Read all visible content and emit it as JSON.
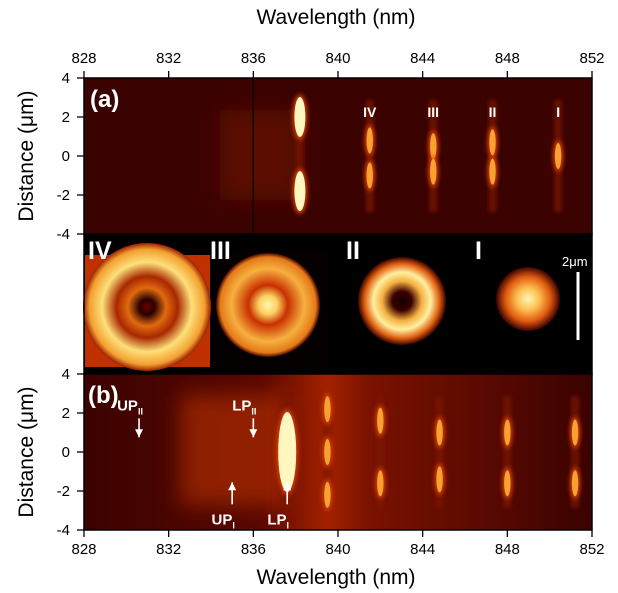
{
  "chart_data": {
    "type": "heatmap",
    "colors": {
      "background": "#350100",
      "cmap_low": "#2a0000",
      "cmap_mid": "#c43000",
      "cmap_high": "#fff6a0",
      "annotation": "#ffffff"
    },
    "x_axis": {
      "label": "Wavelength (nm)",
      "range": [
        828,
        852
      ],
      "ticks": [
        "828",
        "832",
        "836",
        "840",
        "844",
        "848",
        "852"
      ],
      "tick_values": [
        828,
        832,
        836,
        840,
        844,
        848,
        852
      ],
      "top_and_bottom": true
    },
    "panel_a": {
      "label": "(a)",
      "ylabel": "Distance (μm)",
      "yrange": [
        -4,
        4
      ],
      "yticks": [
        "4",
        "2",
        "0",
        "-2",
        "-4"
      ],
      "ytick_values": [
        4,
        2,
        0,
        -2,
        -4
      ],
      "vertical_marker_nm": 836,
      "lines": [
        {
          "label": "",
          "wavelength": 838.2,
          "intensity": 1.0,
          "spots": [
            2.0,
            -1.8
          ]
        },
        {
          "label": "IV",
          "wavelength": 841.5,
          "intensity": 0.6,
          "spots": [
            0.8,
            -1.0
          ]
        },
        {
          "label": "III",
          "wavelength": 844.5,
          "intensity": 0.55,
          "spots": [
            0.5,
            -0.8
          ]
        },
        {
          "label": "II",
          "wavelength": 847.3,
          "intensity": 0.55,
          "spots": [
            0.7,
            -0.8
          ]
        },
        {
          "label": "I",
          "wavelength": 850.4,
          "intensity": 0.6,
          "spots": [
            0.0
          ]
        }
      ]
    },
    "mode_images": {
      "scale_bar": "2μm",
      "modes": [
        {
          "label": "IV",
          "pattern": "ring with bright outer ring and dark center"
        },
        {
          "label": "III",
          "pattern": "ring with bright center"
        },
        {
          "label": "II",
          "pattern": "donut with dark center"
        },
        {
          "label": "I",
          "pattern": "single bright lobe"
        }
      ]
    },
    "panel_b": {
      "label": "(b)",
      "ylabel": "Distance (μm)",
      "yrange": [
        -4,
        4
      ],
      "yticks": [
        "4",
        "2",
        "0",
        "-2",
        "-4"
      ],
      "ytick_values": [
        4,
        2,
        0,
        -2,
        -4
      ],
      "lines": [
        {
          "wavelength": 837.6,
          "intensity": 1.0,
          "spots": [
            0.0
          ]
        },
        {
          "wavelength": 839.5,
          "intensity": 0.7,
          "spots": [
            2.2,
            0.0,
            -2.2
          ]
        },
        {
          "wavelength": 842.0,
          "intensity": 0.6,
          "spots": [
            1.6,
            -1.6
          ]
        },
        {
          "wavelength": 844.8,
          "intensity": 0.55,
          "spots": [
            1.0,
            -1.4
          ]
        },
        {
          "wavelength": 848.0,
          "intensity": 0.55,
          "spots": [
            1.0,
            -1.6
          ]
        },
        {
          "wavelength": 851.2,
          "intensity": 0.6,
          "spots": [
            1.0,
            -1.6
          ]
        }
      ],
      "annotations": [
        {
          "text": "UP",
          "sub": "II",
          "wavelength": 830.6,
          "position_um": 0.6
        },
        {
          "text": "LP",
          "sub": "II",
          "wavelength": 836.0,
          "position_um": 0.6
        },
        {
          "text": "UP",
          "sub": "I",
          "wavelength": 835.0,
          "position_um": -1.4
        },
        {
          "text": "LP",
          "sub": "I",
          "wavelength": 837.6,
          "position_um": -1.4
        }
      ]
    }
  }
}
